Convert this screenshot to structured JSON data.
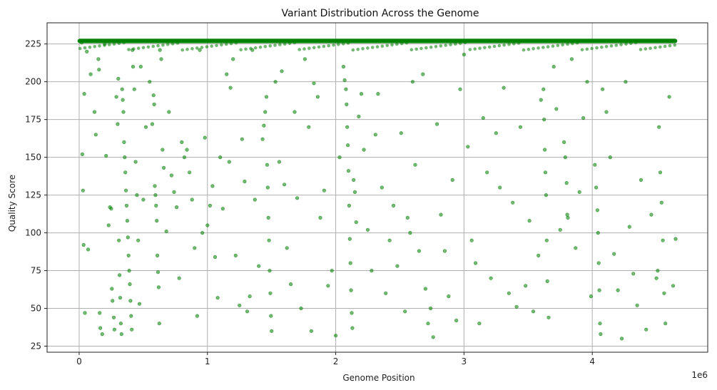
{
  "chart_data": {
    "type": "scatter",
    "title": "Variant Distribution Across the Genome",
    "xlabel": "Genome Position",
    "ylabel": "Quality Score",
    "x_offset_label": "1e6",
    "xlim": [
      -250000,
      4900000
    ],
    "ylim": [
      21,
      239
    ],
    "x_ticks": [
      0,
      1000000,
      2000000,
      3000000,
      4000000
    ],
    "x_tick_labels": [
      "0",
      "1",
      "2",
      "3",
      "4"
    ],
    "y_ticks": [
      25,
      50,
      75,
      100,
      125,
      150,
      175,
      200,
      225
    ],
    "y_tick_labels": [
      "25",
      "50",
      "75",
      "100",
      "125",
      "150",
      "175",
      "200",
      "225"
    ],
    "grid": true,
    "marker_color": "#008000",
    "marker_alpha": 0.55,
    "series": [
      {
        "points": [
          [
            20000,
            226
          ],
          [
            25000,
            152
          ],
          [
            30000,
            128
          ],
          [
            35000,
            92
          ],
          [
            40000,
            192
          ],
          [
            45000,
            47
          ],
          [
            60000,
            220
          ],
          [
            70000,
            89
          ],
          [
            90000,
            205
          ],
          [
            120000,
            180
          ],
          [
            130000,
            165
          ],
          [
            150000,
            215
          ],
          [
            155000,
            208
          ],
          [
            160000,
            47
          ],
          [
            165000,
            37
          ],
          [
            180000,
            33
          ],
          [
            200000,
            225
          ],
          [
            210000,
            151
          ],
          [
            230000,
            105
          ],
          [
            240000,
            117
          ],
          [
            250000,
            116
          ],
          [
            255000,
            63
          ],
          [
            260000,
            55
          ],
          [
            270000,
            44
          ],
          [
            275000,
            36
          ],
          [
            290000,
            190
          ],
          [
            300000,
            172
          ],
          [
            305000,
            202
          ],
          [
            310000,
            95
          ],
          [
            315000,
            72
          ],
          [
            320000,
            57
          ],
          [
            325000,
            40
          ],
          [
            330000,
            33
          ],
          [
            335000,
            195
          ],
          [
            340000,
            188
          ],
          [
            345000,
            180
          ],
          [
            350000,
            160
          ],
          [
            355000,
            150
          ],
          [
            360000,
            140
          ],
          [
            365000,
            128
          ],
          [
            370000,
            118
          ],
          [
            375000,
            108
          ],
          [
            380000,
            97
          ],
          [
            385000,
            85
          ],
          [
            390000,
            75
          ],
          [
            395000,
            66
          ],
          [
            400000,
            55
          ],
          [
            405000,
            45
          ],
          [
            410000,
            36
          ],
          [
            415000,
            221
          ],
          [
            420000,
            210
          ],
          [
            430000,
            195
          ],
          [
            440000,
            147
          ],
          [
            450000,
            125
          ],
          [
            460000,
            95
          ],
          [
            470000,
            53
          ],
          [
            480000,
            210
          ],
          [
            500000,
            122
          ],
          [
            520000,
            170
          ],
          [
            550000,
            200
          ],
          [
            570000,
            172
          ],
          [
            580000,
            191
          ],
          [
            585000,
            185
          ],
          [
            590000,
            131
          ],
          [
            595000,
            125
          ],
          [
            600000,
            118
          ],
          [
            605000,
            108
          ],
          [
            610000,
            85
          ],
          [
            615000,
            74
          ],
          [
            620000,
            64
          ],
          [
            625000,
            40
          ],
          [
            630000,
            221
          ],
          [
            640000,
            215
          ],
          [
            650000,
            155
          ],
          [
            660000,
            143
          ],
          [
            680000,
            101
          ],
          [
            700000,
            180
          ],
          [
            720000,
            138
          ],
          [
            740000,
            127
          ],
          [
            760000,
            117
          ],
          [
            780000,
            70
          ],
          [
            800000,
            160
          ],
          [
            820000,
            150
          ],
          [
            840000,
            155
          ],
          [
            860000,
            140
          ],
          [
            880000,
            122
          ],
          [
            900000,
            90
          ],
          [
            920000,
            45
          ],
          [
            940000,
            221
          ],
          [
            960000,
            100
          ],
          [
            980000,
            163
          ],
          [
            1000000,
            105
          ],
          [
            1020000,
            118
          ],
          [
            1040000,
            131
          ],
          [
            1060000,
            84
          ],
          [
            1080000,
            57
          ],
          [
            1100000,
            150
          ],
          [
            1120000,
            116
          ],
          [
            1150000,
            205
          ],
          [
            1170000,
            147
          ],
          [
            1180000,
            196
          ],
          [
            1200000,
            215
          ],
          [
            1220000,
            85
          ],
          [
            1250000,
            52
          ],
          [
            1270000,
            162
          ],
          [
            1290000,
            134
          ],
          [
            1310000,
            48
          ],
          [
            1330000,
            58
          ],
          [
            1350000,
            221
          ],
          [
            1370000,
            122
          ],
          [
            1400000,
            78
          ],
          [
            1430000,
            162
          ],
          [
            1440000,
            171
          ],
          [
            1450000,
            180
          ],
          [
            1460000,
            190
          ],
          [
            1465000,
            145
          ],
          [
            1470000,
            130
          ],
          [
            1475000,
            110
          ],
          [
            1480000,
            95
          ],
          [
            1485000,
            75
          ],
          [
            1490000,
            60
          ],
          [
            1495000,
            45
          ],
          [
            1500000,
            35
          ],
          [
            1530000,
            200
          ],
          [
            1560000,
            147
          ],
          [
            1580000,
            207
          ],
          [
            1600000,
            132
          ],
          [
            1620000,
            90
          ],
          [
            1650000,
            66
          ],
          [
            1680000,
            180
          ],
          [
            1700000,
            123
          ],
          [
            1730000,
            50
          ],
          [
            1760000,
            215
          ],
          [
            1790000,
            170
          ],
          [
            1810000,
            35
          ],
          [
            1830000,
            199
          ],
          [
            1860000,
            190
          ],
          [
            1880000,
            110
          ],
          [
            1910000,
            128
          ],
          [
            1940000,
            65
          ],
          [
            1970000,
            75
          ],
          [
            2000000,
            32
          ],
          [
            2030000,
            150
          ],
          [
            2060000,
            210
          ],
          [
            2070000,
            201
          ],
          [
            2080000,
            195
          ],
          [
            2085000,
            185
          ],
          [
            2090000,
            170
          ],
          [
            2095000,
            158
          ],
          [
            2100000,
            141
          ],
          [
            2105000,
            118
          ],
          [
            2110000,
            96
          ],
          [
            2115000,
            80
          ],
          [
            2120000,
            62
          ],
          [
            2125000,
            47
          ],
          [
            2130000,
            37
          ],
          [
            2140000,
            135
          ],
          [
            2150000,
            127
          ],
          [
            2160000,
            107
          ],
          [
            2180000,
            177
          ],
          [
            2200000,
            192
          ],
          [
            2220000,
            155
          ],
          [
            2250000,
            102
          ],
          [
            2280000,
            75
          ],
          [
            2310000,
            165
          ],
          [
            2330000,
            192
          ],
          [
            2360000,
            130
          ],
          [
            2390000,
            60
          ],
          [
            2420000,
            95
          ],
          [
            2450000,
            118
          ],
          [
            2480000,
            78
          ],
          [
            2510000,
            166
          ],
          [
            2540000,
            48
          ],
          [
            2560000,
            110
          ],
          [
            2580000,
            100
          ],
          [
            2600000,
            200
          ],
          [
            2620000,
            145
          ],
          [
            2650000,
            88
          ],
          [
            2680000,
            205
          ],
          [
            2700000,
            63
          ],
          [
            2720000,
            40
          ],
          [
            2740000,
            50
          ],
          [
            2760000,
            31
          ],
          [
            2790000,
            172
          ],
          [
            2820000,
            112
          ],
          [
            2850000,
            88
          ],
          [
            2880000,
            58
          ],
          [
            2910000,
            135
          ],
          [
            2940000,
            42
          ],
          [
            2970000,
            195
          ],
          [
            3000000,
            218
          ],
          [
            3030000,
            157
          ],
          [
            3060000,
            95
          ],
          [
            3090000,
            80
          ],
          [
            3120000,
            40
          ],
          [
            3150000,
            176
          ],
          [
            3180000,
            140
          ],
          [
            3210000,
            70
          ],
          [
            3250000,
            166
          ],
          [
            3280000,
            130
          ],
          [
            3310000,
            196
          ],
          [
            3350000,
            60
          ],
          [
            3380000,
            120
          ],
          [
            3410000,
            51
          ],
          [
            3440000,
            170
          ],
          [
            3480000,
            65
          ],
          [
            3510000,
            108
          ],
          [
            3540000,
            48
          ],
          [
            3580000,
            85
          ],
          [
            3600000,
            188
          ],
          [
            3620000,
            195
          ],
          [
            3625000,
            175
          ],
          [
            3630000,
            155
          ],
          [
            3635000,
            140
          ],
          [
            3640000,
            125
          ],
          [
            3645000,
            95
          ],
          [
            3650000,
            68
          ],
          [
            3660000,
            44
          ],
          [
            3700000,
            210
          ],
          [
            3720000,
            182
          ],
          [
            3750000,
            102
          ],
          [
            3780000,
            160
          ],
          [
            3790000,
            150
          ],
          [
            3800000,
            133
          ],
          [
            3805000,
            112
          ],
          [
            3810000,
            110
          ],
          [
            3840000,
            215
          ],
          [
            3870000,
            90
          ],
          [
            3900000,
            127
          ],
          [
            3930000,
            176
          ],
          [
            3960000,
            200
          ],
          [
            3990000,
            58
          ],
          [
            4020000,
            145
          ],
          [
            4030000,
            130
          ],
          [
            4040000,
            115
          ],
          [
            4045000,
            100
          ],
          [
            4050000,
            80
          ],
          [
            4055000,
            62
          ],
          [
            4060000,
            40
          ],
          [
            4065000,
            33
          ],
          [
            4080000,
            195
          ],
          [
            4110000,
            180
          ],
          [
            4140000,
            150
          ],
          [
            4170000,
            86
          ],
          [
            4200000,
            62
          ],
          [
            4230000,
            30
          ],
          [
            4260000,
            200
          ],
          [
            4290000,
            104
          ],
          [
            4320000,
            73
          ],
          [
            4350000,
            52
          ],
          [
            4380000,
            135
          ],
          [
            4420000,
            36
          ],
          [
            4460000,
            112
          ],
          [
            4500000,
            70
          ],
          [
            4510000,
            75
          ],
          [
            4520000,
            170
          ],
          [
            4530000,
            140
          ],
          [
            4540000,
            120
          ],
          [
            4550000,
            95
          ],
          [
            4560000,
            60
          ],
          [
            4570000,
            40
          ],
          [
            4600000,
            190
          ],
          [
            4630000,
            65
          ],
          [
            4650000,
            96
          ]
        ]
      }
    ]
  }
}
